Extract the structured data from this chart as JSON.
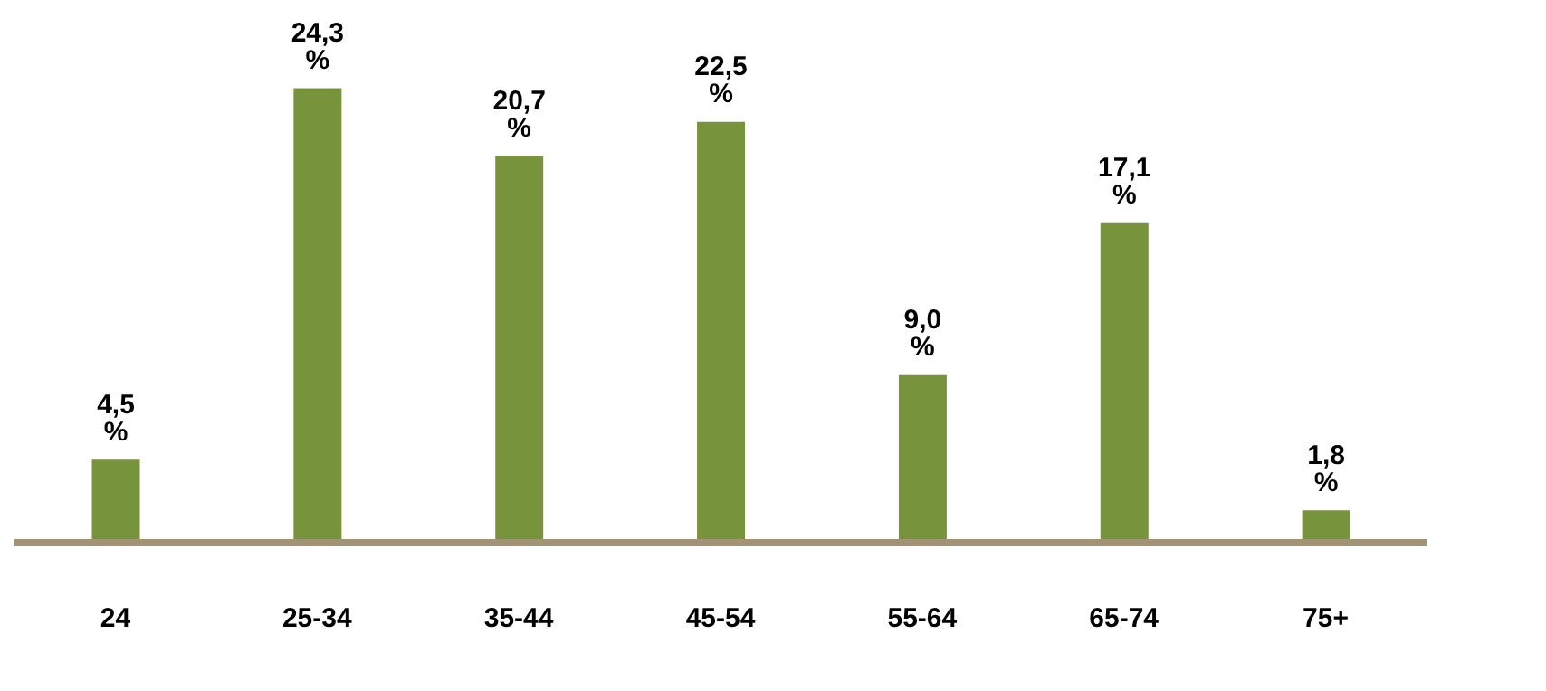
{
  "chart_data": {
    "type": "bar",
    "categories": [
      "24",
      "25-34",
      "35-44",
      "45-54",
      "55-64",
      "65-74",
      "75+"
    ],
    "values": [
      4.5,
      24.3,
      20.7,
      22.5,
      9.0,
      17.1,
      1.8
    ],
    "value_labels": [
      "4,5 %",
      "24,3 %",
      "20,7 %",
      "22,5 %",
      "9,0 %",
      "17,1 %",
      "1,8 %"
    ],
    "color": "#77933c",
    "grid": false,
    "legend": false
  }
}
